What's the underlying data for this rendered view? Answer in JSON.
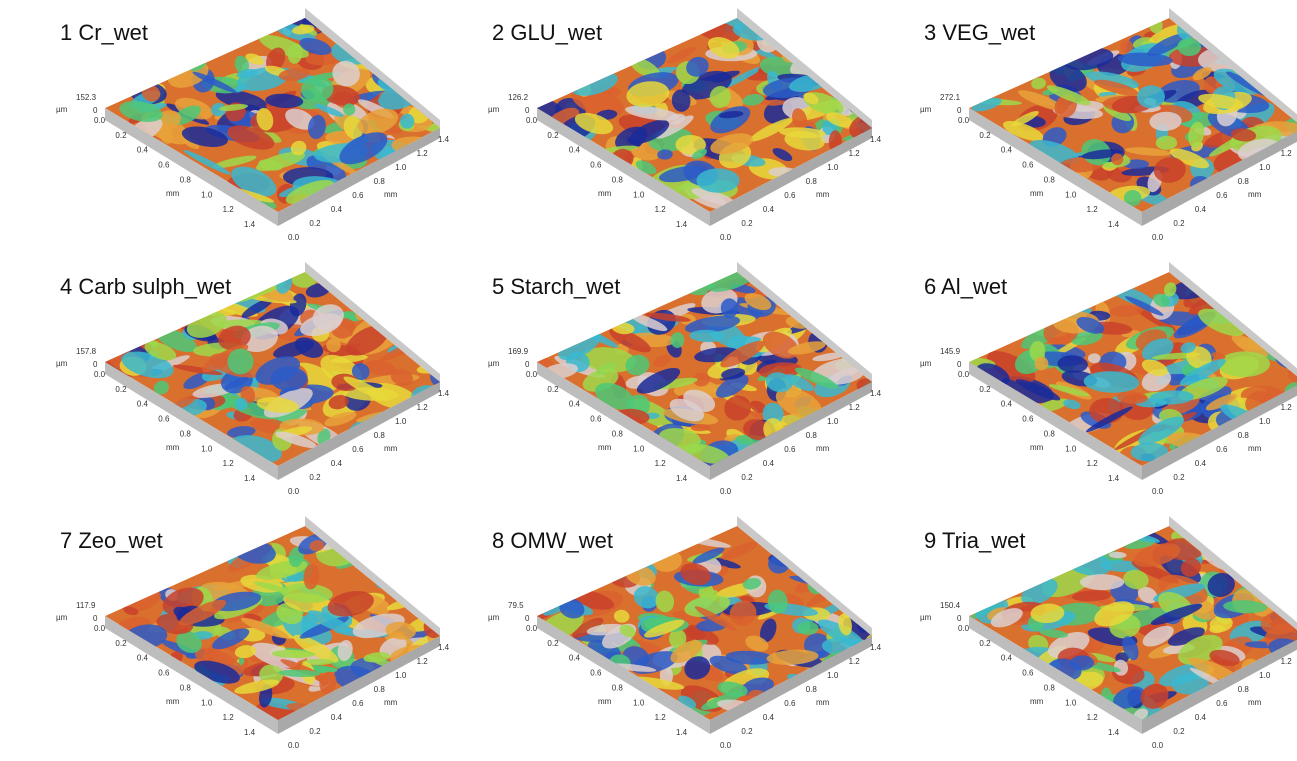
{
  "figure": {
    "panels": [
      {
        "title": "1 Cr_wet",
        "z_max": "152.3"
      },
      {
        "title": "2 GLU_wet",
        "z_max": "126.2"
      },
      {
        "title": "3 VEG_wet",
        "z_max": "272.1"
      },
      {
        "title": "4 Carb sulph_wet",
        "z_max": "157.8"
      },
      {
        "title": "5 Starch_wet",
        "z_max": "169.9"
      },
      {
        "title": "6 Al_wet",
        "z_max": "145.9"
      },
      {
        "title": "7 Zeo_wet",
        "z_max": "117.9"
      },
      {
        "title": "8 OMW_wet",
        "z_max": "79.5"
      },
      {
        "title": "9 Tria_wet",
        "z_max": "150.4"
      }
    ],
    "z_unit": "µm",
    "z_min": "0",
    "axis_ticks": [
      "0.0",
      "0.2",
      "0.4",
      "0.6",
      "0.8",
      "1.0",
      "1.2",
      "1.4"
    ],
    "axis_unit": "mm"
  }
}
